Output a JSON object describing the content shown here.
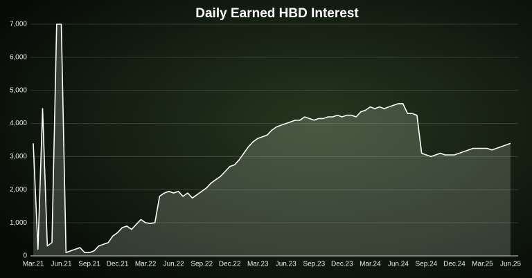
{
  "chart_data": {
    "type": "area",
    "title": "Daily Earned HBD Interest",
    "categories": [
      "Mar.21",
      null,
      null,
      null,
      null,
      null,
      "Jun.21",
      null,
      null,
      null,
      null,
      null,
      "Sep.21",
      null,
      null,
      null,
      null,
      null,
      "Dec.21",
      null,
      null,
      null,
      null,
      null,
      "Mar.22",
      null,
      null,
      null,
      null,
      null,
      "Jun.22",
      null,
      null,
      null,
      null,
      null,
      "Sep.22",
      null,
      null,
      null,
      null,
      null,
      "Dec.22",
      null,
      null,
      null,
      null,
      null,
      "Mar.23",
      null,
      null,
      null,
      null,
      null,
      "Jun.23",
      null,
      null,
      null,
      null,
      null,
      "Sep.23",
      null,
      null,
      null,
      null,
      null,
      "Dec.23",
      null,
      null,
      null,
      null,
      null,
      "Mar.24",
      null,
      null,
      null,
      null,
      null,
      "Jun.24",
      null,
      null,
      null,
      null,
      null,
      "Sep.24",
      null,
      null,
      null,
      null,
      null,
      "Dec.24",
      null,
      null,
      null,
      null,
      null,
      "Mar.25",
      null,
      null,
      null,
      null,
      null,
      "Jun.25"
    ],
    "values": [
      3400,
      200,
      4450,
      300,
      400,
      7000,
      7000,
      100,
      150,
      200,
      250,
      100,
      100,
      150,
      300,
      350,
      400,
      600,
      700,
      850,
      900,
      800,
      950,
      1100,
      1000,
      980,
      1000,
      1800,
      1900,
      1950,
      1900,
      1950,
      1800,
      1900,
      1750,
      1850,
      1950,
      2050,
      2200,
      2300,
      2400,
      2550,
      2700,
      2750,
      2900,
      3100,
      3300,
      3450,
      3550,
      3600,
      3650,
      3800,
      3900,
      3950,
      4000,
      4050,
      4100,
      4100,
      4200,
      4150,
      4100,
      4150,
      4150,
      4200,
      4200,
      4250,
      4200,
      4250,
      4250,
      4200,
      4350,
      4400,
      4500,
      4450,
      4500,
      4450,
      4500,
      4550,
      4600,
      4600,
      4300,
      4300,
      4250,
      3100,
      3050,
      3000,
      3050,
      3100,
      3050,
      3050,
      3050,
      3100,
      3150,
      3200,
      3250,
      3250,
      3250,
      3250,
      3200,
      3250,
      3300,
      3350,
      3400
    ],
    "color": "#ffffff",
    "ylim": [
      0,
      7000
    ],
    "yticks": [
      0,
      {
        "value": 1000,
        "label": "1,000"
      },
      {
        "value": 2000,
        "label": "2,000"
      },
      {
        "value": 3000,
        "label": "3,000"
      },
      {
        "value": 4000,
        "label": "4,000"
      },
      {
        "value": 5000,
        "label": "5,000"
      },
      {
        "value": 6000,
        "label": "6,000"
      },
      {
        "value": 7000,
        "label": "7,000"
      }
    ],
    "grid": true
  }
}
